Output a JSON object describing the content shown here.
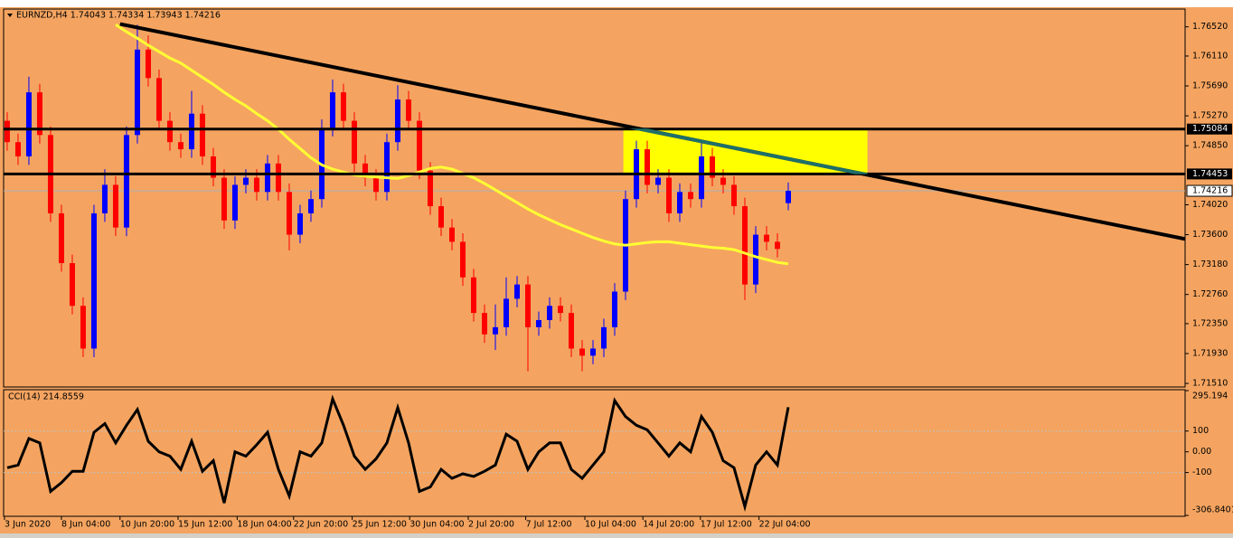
{
  "chart_data": [
    {
      "type": "candlestick",
      "title": "EURNZD,H4 1.74043 1.74334 1.73943 1.74216",
      "open": [
        1.752,
        1.749,
        1.747,
        1.756,
        1.75,
        1.739,
        1.732,
        1.726,
        1.72,
        1.739,
        1.743,
        1.737,
        1.75,
        1.762,
        1.758,
        1.752,
        1.749,
        1.748,
        1.753,
        1.747,
        1.744,
        1.738,
        1.743,
        1.744,
        1.742,
        1.746,
        1.742,
        1.736,
        1.739,
        1.741,
        1.751,
        1.756,
        1.752,
        1.746,
        1.744,
        1.742,
        1.749,
        1.755,
        1.752,
        1.745,
        1.74,
        1.737,
        1.735,
        1.73,
        1.725,
        1.722,
        1.723,
        1.727,
        1.729,
        1.723,
        1.724,
        1.726,
        1.725,
        1.72,
        1.719,
        1.72,
        1.723,
        1.728,
        1.741,
        1.748,
        1.743,
        1.744,
        1.739,
        1.742,
        1.741,
        1.747,
        1.744,
        1.743,
        1.74,
        1.729,
        1.736,
        1.735,
        1.74043
      ],
      "high": [
        1.7532,
        1.7502,
        1.7582,
        1.7572,
        1.7512,
        1.7402,
        1.7332,
        1.7272,
        1.7402,
        1.7452,
        1.7442,
        1.7512,
        1.7655,
        1.764,
        1.7592,
        1.7532,
        1.7502,
        1.7562,
        1.7542,
        1.7482,
        1.7452,
        1.7442,
        1.7452,
        1.7452,
        1.7472,
        1.7472,
        1.7432,
        1.7402,
        1.7422,
        1.7522,
        1.7578,
        1.7572,
        1.7532,
        1.7472,
        1.7452,
        1.7502,
        1.757,
        1.7562,
        1.7532,
        1.7462,
        1.7412,
        1.7382,
        1.7362,
        1.7312,
        1.7262,
        1.7262,
        1.73,
        1.7302,
        1.7302,
        1.7252,
        1.7272,
        1.7272,
        1.7262,
        1.7212,
        1.7212,
        1.7242,
        1.7292,
        1.7422,
        1.7492,
        1.7492,
        1.7452,
        1.7452,
        1.7432,
        1.7432,
        1.7492,
        1.7482,
        1.7452,
        1.7442,
        1.7412,
        1.7372,
        1.7372,
        1.7362,
        1.74334
      ],
      "low": [
        1.7478,
        1.7458,
        1.7458,
        1.7488,
        1.7378,
        1.7308,
        1.7248,
        1.7188,
        1.7188,
        1.7378,
        1.7358,
        1.7358,
        1.7488,
        1.7568,
        1.7508,
        1.7478,
        1.7468,
        1.7468,
        1.7458,
        1.7428,
        1.7368,
        1.7368,
        1.7418,
        1.7408,
        1.7408,
        1.7408,
        1.7338,
        1.7348,
        1.7378,
        1.7398,
        1.7498,
        1.7508,
        1.7448,
        1.7428,
        1.7408,
        1.7408,
        1.7478,
        1.7508,
        1.7438,
        1.7388,
        1.7358,
        1.7338,
        1.7288,
        1.7238,
        1.7208,
        1.7198,
        1.7218,
        1.7258,
        1.7168,
        1.7218,
        1.7228,
        1.7238,
        1.7188,
        1.7168,
        1.7178,
        1.7188,
        1.7218,
        1.7268,
        1.7398,
        1.7418,
        1.7418,
        1.7378,
        1.7378,
        1.7398,
        1.7398,
        1.7428,
        1.7418,
        1.7388,
        1.7268,
        1.7278,
        1.7338,
        1.7328,
        1.73943
      ],
      "close": [
        1.749,
        1.747,
        1.756,
        1.75,
        1.739,
        1.732,
        1.726,
        1.72,
        1.739,
        1.743,
        1.737,
        1.75,
        1.762,
        1.758,
        1.752,
        1.749,
        1.748,
        1.753,
        1.747,
        1.744,
        1.738,
        1.743,
        1.744,
        1.742,
        1.746,
        1.742,
        1.736,
        1.739,
        1.741,
        1.751,
        1.756,
        1.752,
        1.746,
        1.744,
        1.742,
        1.749,
        1.755,
        1.752,
        1.745,
        1.74,
        1.737,
        1.735,
        1.73,
        1.725,
        1.722,
        1.723,
        1.727,
        1.729,
        1.723,
        1.724,
        1.726,
        1.725,
        1.72,
        1.719,
        1.72,
        1.723,
        1.728,
        1.741,
        1.748,
        1.743,
        1.744,
        1.739,
        1.742,
        1.741,
        1.747,
        1.744,
        1.743,
        1.74,
        1.729,
        1.736,
        1.735,
        1.734,
        1.74216
      ],
      "up_color": "#0000ff",
      "down_color": "#ff0000",
      "ma": {
        "color": "#ffff33",
        "values": [
          null,
          null,
          null,
          null,
          null,
          null,
          null,
          null,
          null,
          null,
          1.7655,
          1.7645,
          1.7636,
          1.7626,
          1.7617,
          1.7608,
          1.7601,
          1.7591,
          1.7581,
          1.7571,
          1.756,
          1.755,
          1.7541,
          1.753,
          1.752,
          1.7508,
          1.7494,
          1.7481,
          1.7468,
          1.7458,
          1.7452,
          1.7448,
          1.7444,
          1.7442,
          1.7441,
          1.744,
          1.7439,
          1.7443,
          1.7448,
          1.7453,
          1.7455,
          1.7452,
          1.7446,
          1.744,
          1.7432,
          1.7423,
          1.7414,
          1.7405,
          1.7396,
          1.7388,
          1.7381,
          1.7374,
          1.7368,
          1.7362,
          1.7356,
          1.7351,
          1.7347,
          1.7345,
          1.7347,
          1.7349,
          1.735,
          1.735,
          1.7348,
          1.7346,
          1.7344,
          1.7342,
          1.7341,
          1.7339,
          1.7334,
          1.7329,
          1.7325,
          1.7321,
          1.7319
        ]
      },
      "levels": [
        1.75084,
        1.74453
      ],
      "level_color": "#000000",
      "last_price": 1.74216,
      "trendline": {
        "x": [
          10.4,
          108.9
        ],
        "y": [
          1.7656,
          1.7353
        ],
        "color": "#000000"
      },
      "zone": {
        "x": [
          56.8,
          79.3
        ],
        "y": [
          1.7445,
          1.7509
        ],
        "color": "#ffff00",
        "line_color": "#1f6f6a"
      },
      "xlim": [
        -0.33,
        108.58
      ],
      "ylim": [
        1.7146,
        1.7677
      ],
      "yticks": [
        {
          "value": 1.7652,
          "label": "1.76520"
        },
        {
          "value": 1.7611,
          "label": "1.76110"
        },
        {
          "value": 1.7569,
          "label": "1.75690"
        },
        {
          "value": 1.7527,
          "label": "1.75270"
        },
        {
          "value": 1.7485,
          "label": "1.74850"
        },
        {
          "value": 1.7402,
          "label": "1.74020"
        },
        {
          "value": 1.736,
          "label": "1.73600"
        },
        {
          "value": 1.7318,
          "label": "1.73180"
        },
        {
          "value": 1.7276,
          "label": "1.72760"
        },
        {
          "value": 1.7235,
          "label": "1.72350"
        },
        {
          "value": 1.7193,
          "label": "1.71930"
        },
        {
          "value": 1.7151,
          "label": "1.71510"
        }
      ],
      "xticks": [
        {
          "value": -0.25,
          "label": "3 Jun 2020"
        },
        {
          "value": 5,
          "label": "8 Jun 04:00"
        },
        {
          "value": 10.4,
          "label": "10 Jun 20:00"
        },
        {
          "value": 15.75,
          "label": "15 Jun 12:00"
        },
        {
          "value": 21.2,
          "label": "18 Jun 04:00"
        },
        {
          "value": 26.4,
          "label": "22 Jun 20:00"
        },
        {
          "value": 31.8,
          "label": "25 Jun 12:00"
        },
        {
          "value": 37.1,
          "label": "30 Jun 04:00"
        },
        {
          "value": 42.5,
          "label": "2 Jul 20:00"
        },
        {
          "value": 47.8,
          "label": "7 Jul 12:00"
        },
        {
          "value": 53.25,
          "label": "10 Jul 04:00"
        },
        {
          "value": 58.6,
          "label": "14 Jul 20:00"
        },
        {
          "value": 63.9,
          "label": "17 Jul 12:00"
        },
        {
          "value": 69.3,
          "label": "22 Jul 04:00"
        }
      ]
    },
    {
      "type": "line",
      "title": "CCI(14) 214.8559",
      "color": "#000000",
      "values": [
        -77,
        -64,
        64,
        43,
        -191,
        -149,
        -94,
        -94,
        94,
        136,
        43,
        128,
        204,
        51,
        0,
        -21,
        -85,
        51,
        -94,
        -43,
        -247,
        0,
        -21,
        34,
        94,
        -85,
        -213,
        0,
        -21,
        43,
        255,
        128,
        -21,
        -85,
        -34,
        43,
        213,
        43,
        -191,
        -170,
        -85,
        -128,
        -106,
        -119,
        -94,
        -64,
        85,
        51,
        -85,
        0,
        43,
        43,
        -85,
        -128,
        -64,
        0,
        247,
        170,
        128,
        106,
        43,
        -21,
        43,
        0,
        170,
        94,
        -43,
        -77,
        -264,
        -64,
        0,
        -64,
        214.8559
      ],
      "levels": [
        100,
        -100
      ],
      "ylim": [
        -306.8401,
        295.194
      ],
      "yticks": [
        295.194,
        100,
        {
          "value": 0,
          "label": "0.00"
        },
        -100,
        -306.8401
      ]
    }
  ]
}
